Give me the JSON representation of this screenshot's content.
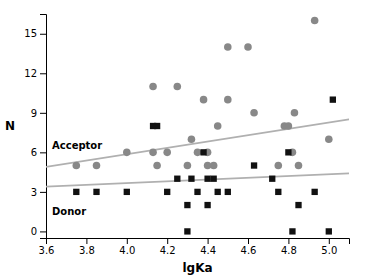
{
  "chart_data": {
    "type": "scatter",
    "x_label": "lgKa",
    "y_label": "N",
    "xlim": [
      3.6,
      5.1
    ],
    "ylim": [
      -0.5,
      16.5
    ],
    "xticks": [
      3.6,
      3.8,
      {
        "value": 4.0,
        "label": "4.0"
      },
      4.2,
      4.4,
      4.6,
      4.8,
      {
        "value": 5.0,
        "label": "5.0"
      }
    ],
    "yticks": [
      0,
      3,
      6,
      9,
      12,
      15
    ],
    "series": [
      {
        "type": "line",
        "x": [
          3.6,
          5.1
        ],
        "values": [
          4.9,
          8.5
        ],
        "color": "#b0b0b0"
      },
      {
        "type": "line",
        "x": [
          3.6,
          5.1
        ],
        "values": [
          3.4,
          4.4
        ],
        "color": "#b0b0b0"
      },
      {
        "type": "scatter",
        "marker": "circle",
        "color": "#888888",
        "x": [
          3.75,
          3.85,
          4.0,
          4.13,
          4.13,
          4.15,
          4.2,
          4.25,
          4.3,
          4.32,
          4.35,
          4.38,
          4.4,
          4.4,
          4.43,
          4.45,
          4.5,
          4.5,
          4.6,
          4.63,
          4.75,
          4.78,
          4.8,
          4.82,
          4.83,
          4.85,
          4.93,
          5.0
        ],
        "values": [
          5,
          5,
          6,
          11,
          6,
          5,
          6,
          11,
          5,
          7,
          6,
          10,
          6,
          5,
          5,
          8,
          14,
          10,
          14,
          9,
          5,
          8,
          8,
          6,
          9,
          5,
          16,
          7
        ]
      },
      {
        "type": "scatter",
        "marker": "square",
        "color": "#111111",
        "x": [
          3.75,
          3.85,
          4.0,
          4.13,
          4.15,
          4.2,
          4.25,
          4.3,
          4.3,
          4.32,
          4.35,
          4.38,
          4.4,
          4.4,
          4.43,
          4.45,
          4.5,
          4.63,
          4.72,
          4.75,
          4.8,
          4.82,
          4.85,
          4.93,
          5.0,
          5.02
        ],
        "values": [
          3,
          3,
          3,
          8,
          8,
          3,
          4,
          0,
          2,
          4,
          3,
          6,
          4,
          2,
          4,
          3,
          3,
          5,
          4,
          3,
          6,
          0,
          2,
          3,
          0,
          10
        ]
      }
    ],
    "annotations": [
      {
        "text": "Acceptor",
        "x": 3.63,
        "y": 6.5
      },
      {
        "text": "Donor",
        "x": 3.63,
        "y": 1.5
      }
    ]
  }
}
